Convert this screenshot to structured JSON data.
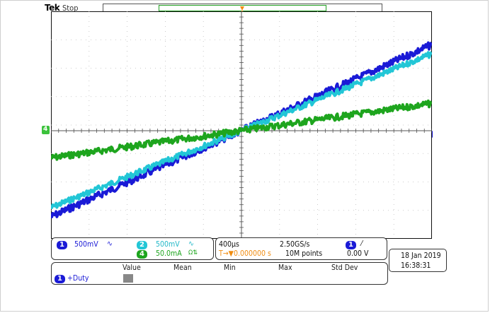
{
  "header": {
    "brand": "Tek",
    "acq_state": "Stop"
  },
  "trigger_marker_label": "T",
  "ground_marker_label": "4",
  "vertical": {
    "ch1": {
      "number": "1",
      "scale": "500mV",
      "coupling_icon": "∿",
      "color": "#1a1ad6"
    },
    "ch2": {
      "number": "2",
      "scale": "500mV",
      "coupling_icon": "∿",
      "color": "#22c6d6"
    },
    "ch4": {
      "number": "4",
      "scale": "50.0mA",
      "coupling_icon": "Ω⇅",
      "color": "#1ea51e"
    }
  },
  "horizontal": {
    "time_scale": "400µs",
    "sample_rate": "2.50GS/s",
    "trigger_delay": "T→▼0.000000 s",
    "record_length": "10M points"
  },
  "trigger": {
    "source_number": "1",
    "slope_icon": "⁄",
    "level": "0.00 V"
  },
  "datetime": {
    "date": "18 Jan  2019",
    "time": "16:38:31"
  },
  "measurements": {
    "headers": [
      "Value",
      "Mean",
      "Min",
      "Max",
      "Std Dev"
    ],
    "rows": [
      {
        "source_number": "1",
        "label": "+Duty"
      }
    ]
  },
  "colors": {
    "ch1": "#1a1ad6",
    "ch2": "#22c6d6",
    "ch4": "#1ea51e",
    "trigger": "#f08c10"
  }
}
